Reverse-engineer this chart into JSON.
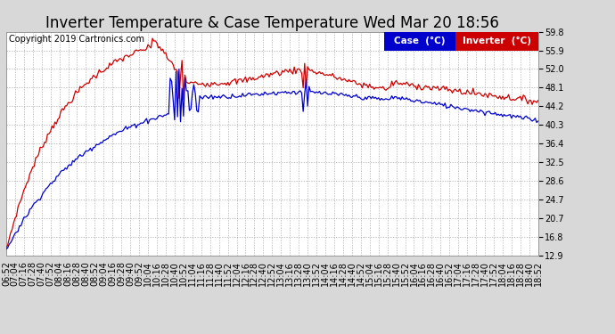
{
  "title": "Inverter Temperature & Case Temperature Wed Mar 20 18:56",
  "copyright": "Copyright 2019 Cartronics.com",
  "background_color": "#d8d8d8",
  "plot_bg_color": "#ffffff",
  "grid_color": "#aaaaaa",
  "ylim": [
    12.9,
    59.8
  ],
  "yticks": [
    12.9,
    16.8,
    20.7,
    24.7,
    28.6,
    32.5,
    36.4,
    40.3,
    44.2,
    48.1,
    52.0,
    55.9,
    59.8
  ],
  "case_color": "#0000cc",
  "inverter_color": "#cc0000",
  "legend_case_bg": "#0000cc",
  "legend_inverter_bg": "#cc0000",
  "legend_text_color": "#ffffff",
  "title_fontsize": 12,
  "copyright_fontsize": 7,
  "tick_fontsize": 7,
  "xtick_step": 6,
  "base_hour": 6,
  "base_min": 52,
  "n_points": 361
}
